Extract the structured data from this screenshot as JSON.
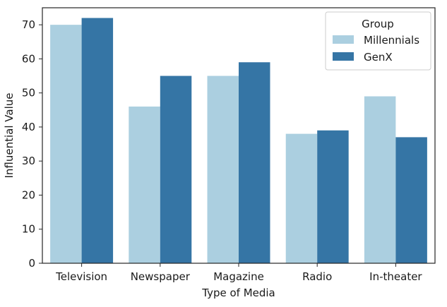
{
  "chart_data": {
    "type": "bar",
    "title": "",
    "xlabel": "Type of Media",
    "ylabel": "Influential Value",
    "categories": [
      "Television",
      "Newspaper",
      "Magazine",
      "Radio",
      "In-theater"
    ],
    "series": [
      {
        "name": "Millennials",
        "color": "#abcfe0",
        "values": [
          70,
          46,
          55,
          38,
          49
        ]
      },
      {
        "name": "GenX",
        "color": "#3575a5",
        "values": [
          72,
          55,
          59,
          39,
          37
        ]
      }
    ],
    "ylim": [
      0,
      75
    ],
    "yticks": [
      0,
      10,
      20,
      30,
      40,
      50,
      60,
      70
    ],
    "grid": false,
    "legend": {
      "title": "Group",
      "placement": "top-right"
    }
  }
}
